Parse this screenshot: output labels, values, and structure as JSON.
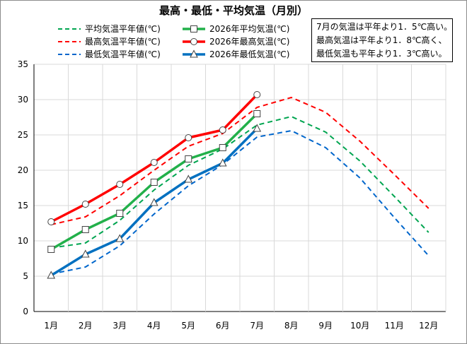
{
  "chart_data": {
    "type": "line",
    "title": "最高・最低・平均気温（月別）",
    "categories": [
      "1月",
      "2月",
      "3月",
      "4月",
      "5月",
      "6月",
      "7月",
      "8月",
      "9月",
      "10月",
      "11月",
      "12月"
    ],
    "ylim": [
      0,
      35
    ],
    "yticks": [
      0,
      5,
      10,
      15,
      20,
      25,
      30,
      35
    ],
    "grid": {
      "horizontal": true,
      "vertical": true
    },
    "legend_position": "top",
    "series": [
      {
        "name": "平均気温平年値(℃)",
        "style": "dashed",
        "color": "#00a550",
        "marker": "none",
        "values": [
          9.0,
          9.7,
          12.9,
          17.2,
          20.7,
          23.0,
          26.4,
          27.6,
          25.4,
          21.3,
          16.3,
          11.2
        ]
      },
      {
        "name": "最高気温平年値(℃)",
        "style": "dashed",
        "color": "#ff0000",
        "marker": "none",
        "values": [
          12.3,
          13.4,
          16.4,
          20.0,
          23.4,
          25.2,
          28.9,
          30.3,
          28.2,
          24.1,
          19.4,
          14.6
        ]
      },
      {
        "name": "最低気温平年値(℃)",
        "style": "dashed",
        "color": "#0066cc",
        "marker": "none",
        "values": [
          5.3,
          6.3,
          9.3,
          13.8,
          17.8,
          20.8,
          24.7,
          25.6,
          23.2,
          18.9,
          13.3,
          7.9
        ]
      },
      {
        "name": "2026年平均気温(℃)",
        "style": "solid",
        "color": "#22b04a",
        "marker": "square",
        "values": [
          8.8,
          11.6,
          13.9,
          18.3,
          21.6,
          23.2,
          28.0,
          null,
          null,
          null,
          null,
          null
        ]
      },
      {
        "name": "2026年最高気温(℃)",
        "style": "solid",
        "color": "#ff0000",
        "marker": "circle",
        "values": [
          12.7,
          15.2,
          18.0,
          21.1,
          24.6,
          25.7,
          30.7,
          null,
          null,
          null,
          null,
          null
        ]
      },
      {
        "name": "2026年最低気温(℃)",
        "style": "solid",
        "color": "#0070c0",
        "marker": "triangle",
        "values": [
          5.1,
          8.1,
          10.3,
          15.4,
          18.7,
          21.0,
          25.9,
          null,
          null,
          null,
          null,
          null
        ]
      }
    ],
    "legend_order": [
      0,
      3,
      1,
      4,
      2,
      5
    ],
    "note_lines": [
      "7月の気温は平年より1．5℃高い。",
      "最高気温は平年より1．8℃高く、",
      "最低気温も平年より1．3℃高い。"
    ]
  }
}
